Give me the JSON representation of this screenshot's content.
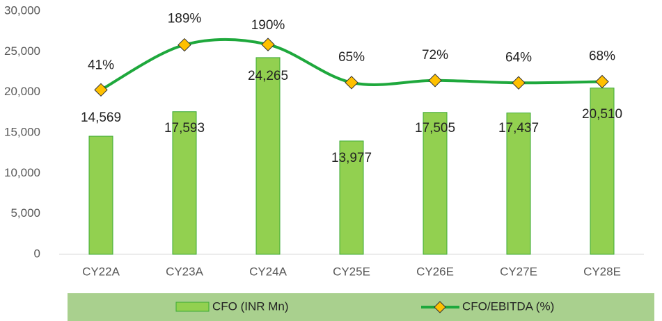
{
  "chart_data": {
    "type": "bar",
    "categories": [
      "CY22A",
      "CY23A",
      "CY24A",
      "CY25E",
      "CY26E",
      "CY27E",
      "CY28E"
    ],
    "series": [
      {
        "name": "CFO (INR Mn)",
        "type": "bar",
        "color": "#92d050",
        "values": [
          14569,
          17593,
          24265,
          13977,
          17505,
          17437,
          20510
        ],
        "value_labels": [
          "14,569",
          "17,593",
          "24,265",
          "13,977",
          "17,505",
          "17,437",
          "20,510"
        ]
      },
      {
        "name": "CFO/EBITDA (%)",
        "type": "line",
        "axis": "y2",
        "color": "#1ea83c",
        "marker_color": "#ffc000",
        "values": [
          41,
          189,
          190,
          65,
          72,
          64,
          68
        ],
        "value_labels": [
          "41%",
          "189%",
          "190%",
          "65%",
          "72%",
          "64%",
          "68%"
        ]
      }
    ],
    "ylim": [
      0,
      30000
    ],
    "yticks": [
      0,
      {
        "value": 5000,
        "label": "5,000"
      },
      {
        "value": 10000,
        "label": "10,000"
      },
      {
        "value": 15000,
        "label": "15,000"
      },
      {
        "value": 20000,
        "label": "20,000"
      },
      {
        "value": 25000,
        "label": "25,000"
      },
      {
        "value": 30000,
        "label": "30,000"
      }
    ],
    "y2lim": [
      -500,
      300
    ],
    "legend": "bottom"
  }
}
